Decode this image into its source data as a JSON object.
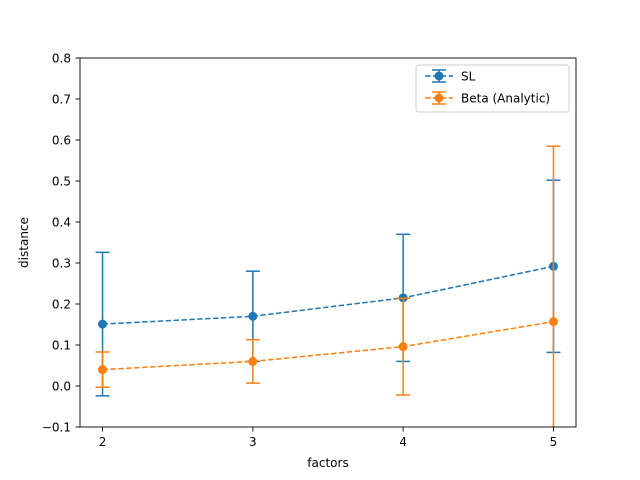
{
  "chart_data": {
    "type": "line",
    "title": "",
    "xlabel": "factors",
    "ylabel": "distance",
    "x": [
      2,
      3,
      4,
      5
    ],
    "xlim": [
      1.85,
      5.15
    ],
    "ylim": [
      -0.1,
      0.8
    ],
    "xticks": [
      2,
      3,
      4,
      5
    ],
    "yticks": [
      -0.1,
      0.0,
      0.1,
      0.2,
      0.3,
      0.4,
      0.5,
      0.6,
      0.7,
      0.8
    ],
    "ytick_labels": [
      "−0.1",
      "0.0",
      "0.1",
      "0.2",
      "0.3",
      "0.4",
      "0.5",
      "0.6",
      "0.7",
      "0.8"
    ],
    "xtick_labels": [
      "2",
      "3",
      "4",
      "5"
    ],
    "grid": false,
    "legend_position": "top-right",
    "series": [
      {
        "name": "SL",
        "color": "#1f77b4",
        "values": [
          0.151,
          0.17,
          0.215,
          0.292
        ],
        "errors": [
          0.175,
          0.11,
          0.155,
          0.21
        ]
      },
      {
        "name": "Beta (Analytic)",
        "color": "#ff7f0e",
        "values": [
          0.04,
          0.06,
          0.096,
          0.157
        ],
        "errors": [
          0.043,
          0.053,
          0.118,
          0.428
        ]
      }
    ]
  }
}
